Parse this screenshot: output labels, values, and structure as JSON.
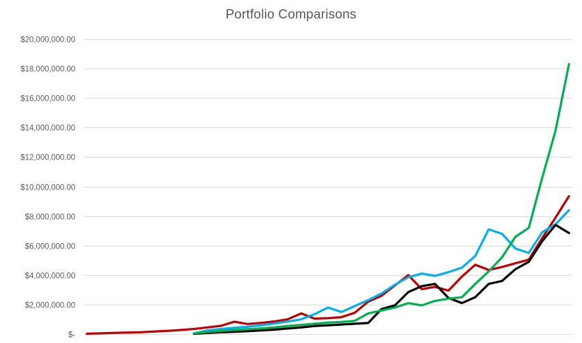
{
  "chart": {
    "title": "Portfolio Comparisons",
    "title_color": "#595959",
    "axis_label_color": "#595959",
    "gridline_color": "#D9D9D9",
    "background_color": "#FFFFFF"
  },
  "chart_data": {
    "type": "line",
    "title": "Portfolio Comparisons",
    "xlabel": "",
    "ylabel": "",
    "x_axis_labels": "hidden",
    "legend": "none",
    "grid": "horizontal",
    "ylim": [
      0,
      20000000
    ],
    "y_tick_step": 2000000,
    "y_tick_values": [
      0,
      2000000,
      4000000,
      6000000,
      8000000,
      10000000,
      12000000,
      14000000,
      16000000,
      18000000,
      20000000
    ],
    "y_tick_labels": [
      "$-",
      "$2,000,000.00",
      "$4,000,000.00",
      "$6,000,000.00",
      "$8,000,000.00",
      "$10,000,000.00",
      "$12,000,000.00",
      "$14,000,000.00",
      "$16,000,000.00",
      "$18,000,000.00",
      "$20,000,000.00"
    ],
    "x": [
      1,
      2,
      3,
      4,
      5,
      6,
      7,
      8,
      9,
      10,
      11,
      12,
      13,
      14,
      15,
      16,
      17,
      18,
      19,
      20,
      21,
      22,
      23,
      24,
      25,
      26,
      27,
      28,
      29,
      30,
      31,
      32,
      33,
      34,
      35,
      36,
      37
    ],
    "series": [
      {
        "name": "portfolio-dark-red",
        "color": "#C00000",
        "values": [
          30000,
          50000,
          80000,
          105000,
          130000,
          170000,
          220000,
          280000,
          350000,
          450000,
          560000,
          840000,
          680000,
          760000,
          860000,
          1000000,
          1400000,
          1050000,
          1080000,
          1150000,
          1450000,
          2200000,
          2600000,
          3300000,
          4000000,
          3050000,
          3200000,
          2950000,
          3900000,
          4700000,
          4350000,
          4550000,
          4800000,
          5050000,
          6500000,
          7900000,
          9350000
        ]
      },
      {
        "name": "portfolio-light-blue",
        "color": "#00B0F0",
        "values": [
          null,
          null,
          null,
          null,
          null,
          null,
          null,
          null,
          50000,
          250000,
          350000,
          430000,
          500000,
          600000,
          720000,
          850000,
          1000000,
          1350000,
          1800000,
          1500000,
          1900000,
          2300000,
          2750000,
          3350000,
          3850000,
          4100000,
          3950000,
          4200000,
          4500000,
          5300000,
          7100000,
          6800000,
          5800000,
          5500000,
          6900000,
          7450000,
          8400000
        ]
      },
      {
        "name": "portfolio-black",
        "color": "#000000",
        "values": [
          null,
          null,
          null,
          null,
          null,
          null,
          null,
          null,
          20000,
          80000,
          120000,
          160000,
          200000,
          250000,
          300000,
          380000,
          450000,
          550000,
          600000,
          650000,
          700000,
          750000,
          1700000,
          1950000,
          2850000,
          3250000,
          3400000,
          2450000,
          2100000,
          2500000,
          3400000,
          3600000,
          4400000,
          4900000,
          6300000,
          7400000,
          6850000
        ]
      },
      {
        "name": "portfolio-green",
        "color": "#00B050",
        "values": [
          null,
          null,
          null,
          null,
          null,
          null,
          null,
          null,
          50000,
          150000,
          220000,
          280000,
          330000,
          380000,
          450000,
          550000,
          620000,
          700000,
          780000,
          820000,
          900000,
          1400000,
          1600000,
          1800000,
          2100000,
          1950000,
          2250000,
          2400000,
          2500000,
          3400000,
          4250000,
          5200000,
          6600000,
          7200000,
          10600000,
          13800000,
          18300000
        ]
      }
    ]
  }
}
